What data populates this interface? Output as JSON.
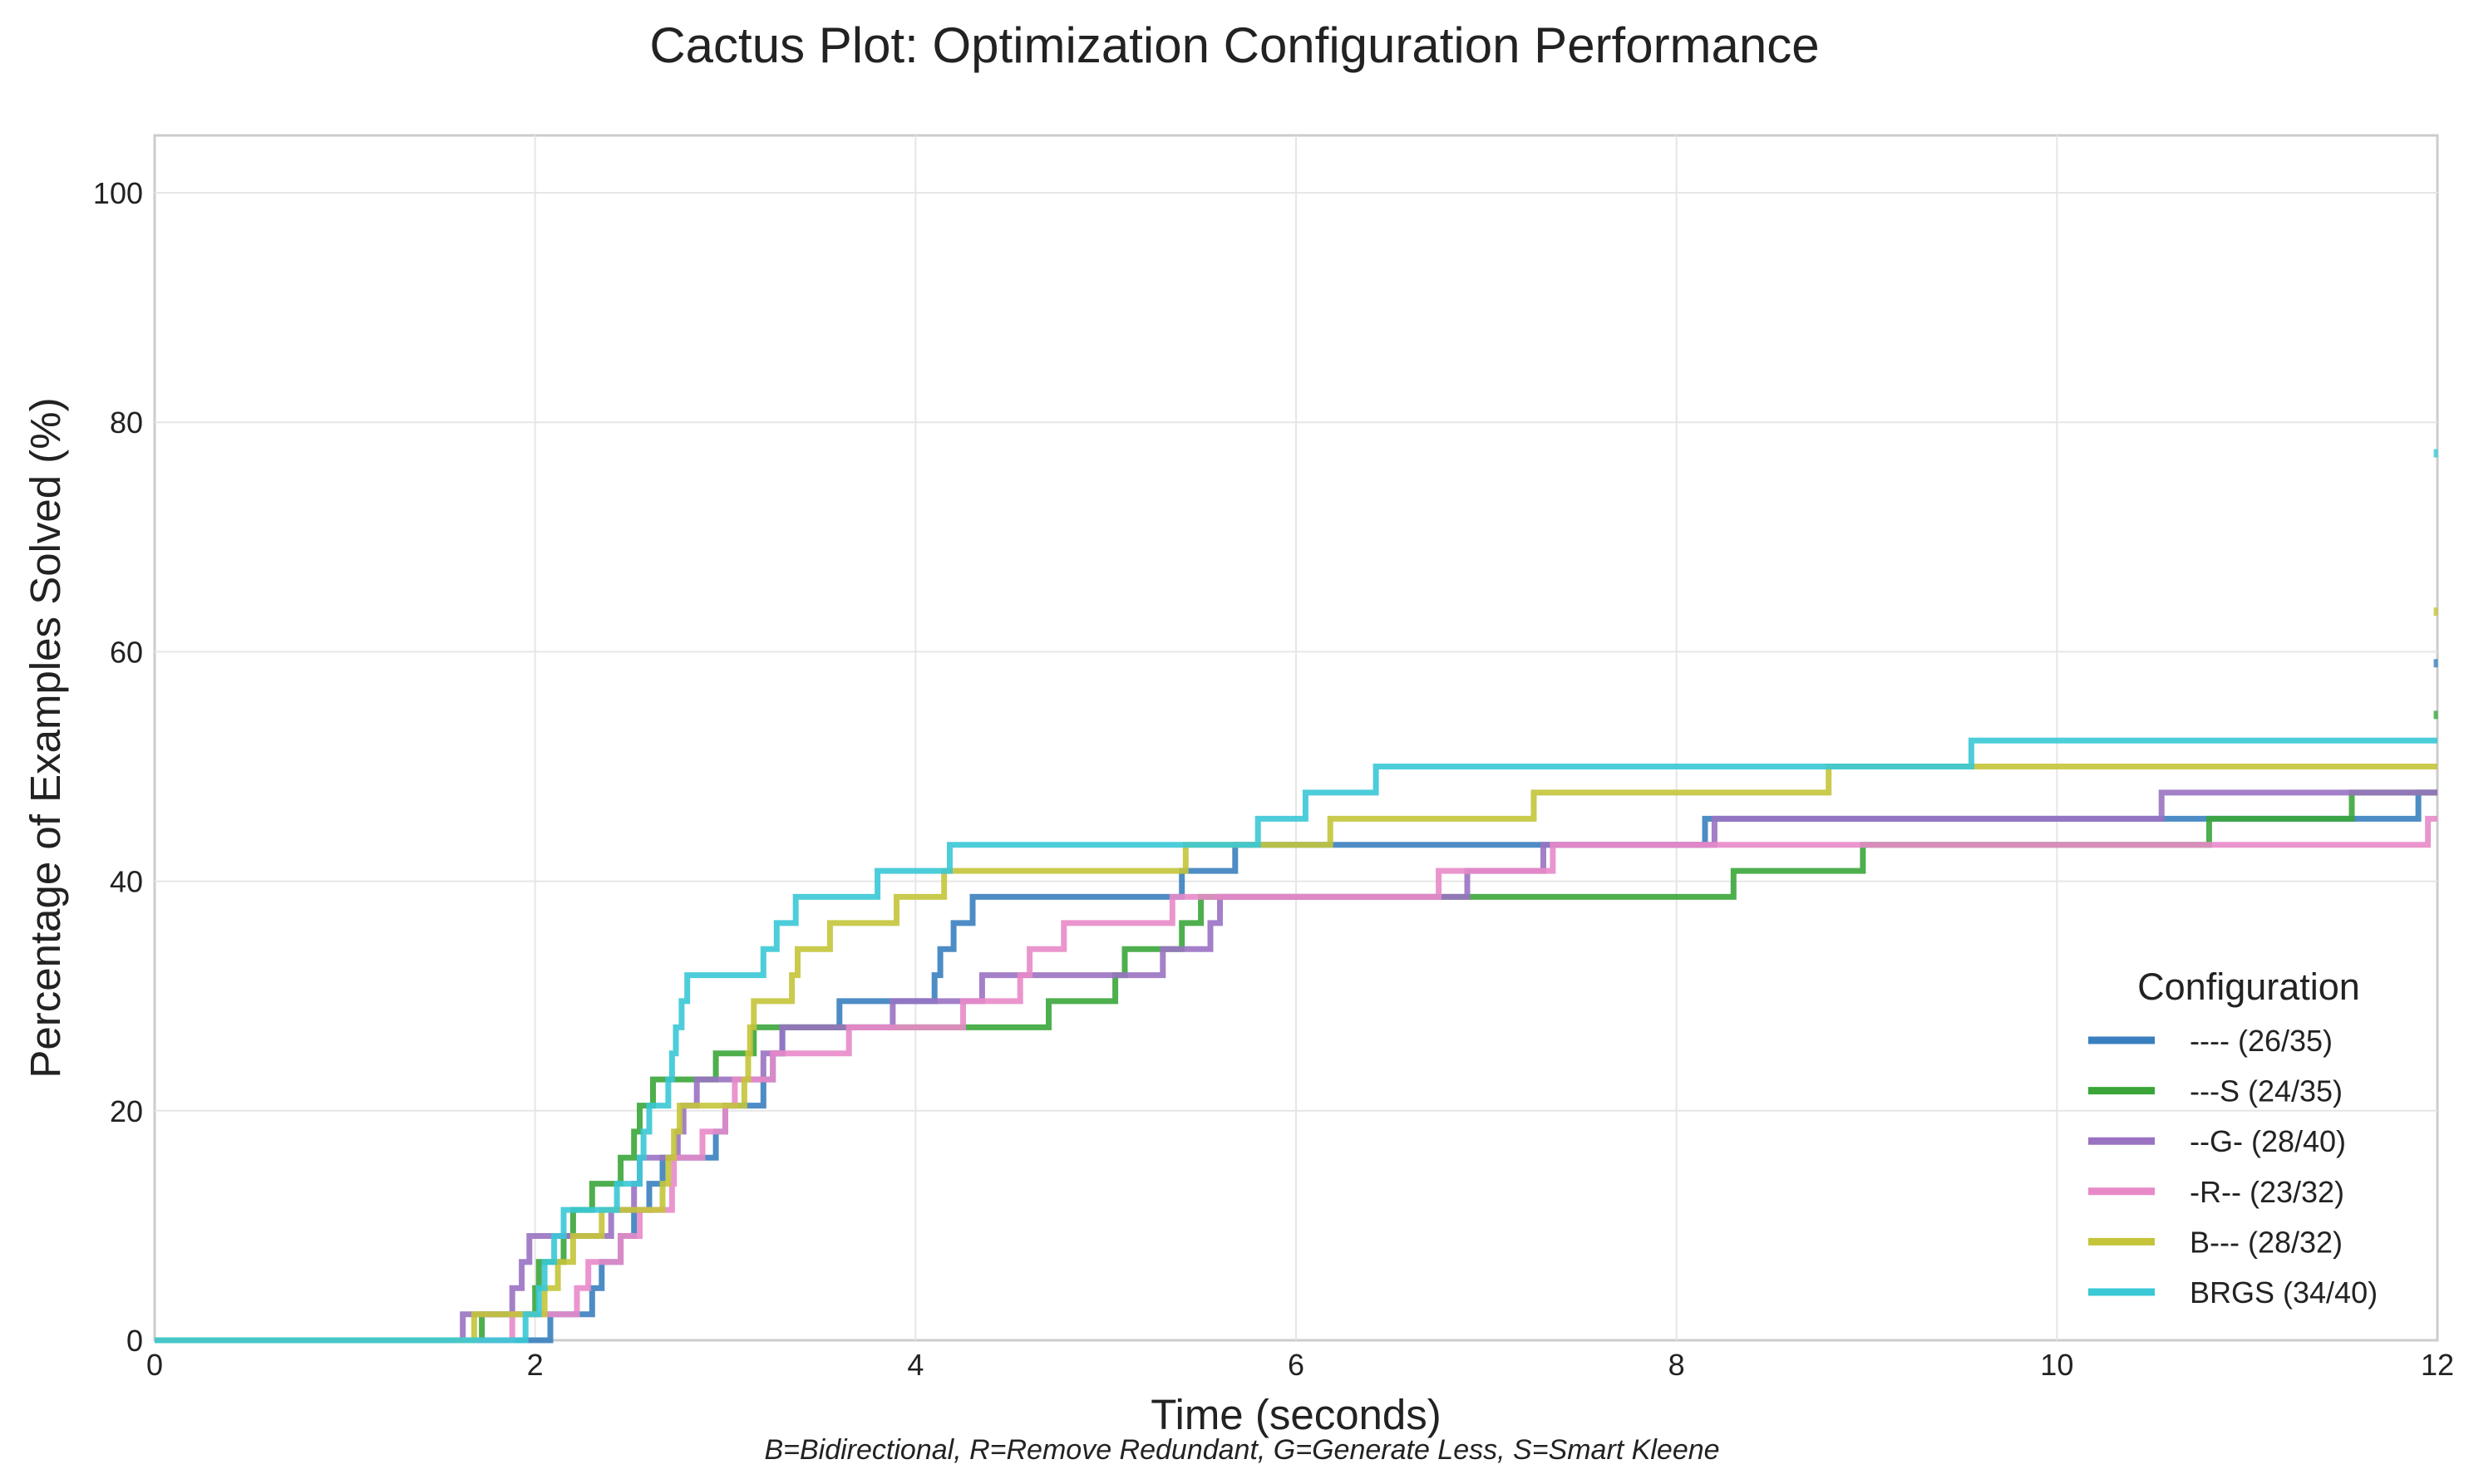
{
  "chart_data": {
    "type": "line",
    "title": "Cactus Plot: Optimization Configuration Performance",
    "xlabel": "Time (seconds)",
    "ylabel": "Percentage of Examples Solved (%)",
    "xlim": [
      0,
      12
    ],
    "ylim": [
      0,
      105
    ],
    "xticks": [
      0,
      2,
      4,
      6,
      8,
      10,
      12
    ],
    "yticks": [
      0,
      20,
      40,
      60,
      80,
      100
    ],
    "grid": true,
    "legend_title": "Configuration",
    "legend_position": "bottom-right",
    "footnote": "B=Bidirectional, R=Remove Redundant, G=Generate Less, S=Smart Kleene",
    "series": [
      {
        "name": "---- (26/35)",
        "color": "#3a7fbf",
        "points": [
          [
            0,
            0
          ],
          [
            2.08,
            0
          ],
          [
            2.08,
            2.27
          ],
          [
            2.3,
            2.27
          ],
          [
            2.3,
            4.55
          ],
          [
            2.35,
            4.55
          ],
          [
            2.35,
            6.82
          ],
          [
            2.45,
            6.82
          ],
          [
            2.45,
            9.09
          ],
          [
            2.52,
            9.09
          ],
          [
            2.52,
            11.36
          ],
          [
            2.6,
            11.36
          ],
          [
            2.6,
            13.64
          ],
          [
            2.67,
            13.64
          ],
          [
            2.67,
            15.91
          ],
          [
            2.95,
            15.91
          ],
          [
            2.95,
            18.18
          ],
          [
            3.0,
            18.18
          ],
          [
            3.0,
            20.45
          ],
          [
            3.2,
            20.45
          ],
          [
            3.2,
            22.73
          ],
          [
            3.25,
            22.73
          ],
          [
            3.25,
            25.0
          ],
          [
            3.3,
            25.0
          ],
          [
            3.3,
            27.27
          ],
          [
            3.6,
            27.27
          ],
          [
            3.6,
            29.55
          ],
          [
            4.1,
            29.55
          ],
          [
            4.1,
            31.82
          ],
          [
            4.13,
            31.82
          ],
          [
            4.13,
            34.09
          ],
          [
            4.2,
            34.09
          ],
          [
            4.2,
            36.36
          ],
          [
            4.3,
            36.36
          ],
          [
            4.3,
            38.64
          ],
          [
            5.4,
            38.64
          ],
          [
            5.4,
            40.91
          ],
          [
            5.68,
            40.91
          ],
          [
            5.68,
            43.18
          ],
          [
            8.15,
            43.18
          ],
          [
            8.15,
            45.45
          ],
          [
            11.9,
            45.45
          ],
          [
            11.9,
            47.73
          ],
          [
            12,
            47.73
          ]
        ],
        "end_marker": 59
      },
      {
        "name": "---S (24/35)",
        "color": "#3aa63a",
        "points": [
          [
            0,
            0
          ],
          [
            1.72,
            0
          ],
          [
            1.72,
            2.27
          ],
          [
            2.0,
            2.27
          ],
          [
            2.0,
            4.55
          ],
          [
            2.02,
            4.55
          ],
          [
            2.02,
            6.82
          ],
          [
            2.15,
            6.82
          ],
          [
            2.15,
            9.09
          ],
          [
            2.2,
            9.09
          ],
          [
            2.2,
            11.36
          ],
          [
            2.3,
            11.36
          ],
          [
            2.3,
            13.64
          ],
          [
            2.45,
            13.64
          ],
          [
            2.45,
            15.91
          ],
          [
            2.52,
            15.91
          ],
          [
            2.52,
            18.18
          ],
          [
            2.55,
            18.18
          ],
          [
            2.55,
            20.45
          ],
          [
            2.62,
            20.45
          ],
          [
            2.62,
            22.73
          ],
          [
            2.95,
            22.73
          ],
          [
            2.95,
            25.0
          ],
          [
            3.15,
            25.0
          ],
          [
            3.15,
            27.27
          ],
          [
            4.7,
            27.27
          ],
          [
            4.7,
            29.55
          ],
          [
            5.05,
            29.55
          ],
          [
            5.05,
            31.82
          ],
          [
            5.1,
            31.82
          ],
          [
            5.1,
            34.09
          ],
          [
            5.4,
            34.09
          ],
          [
            5.4,
            36.36
          ],
          [
            5.5,
            36.36
          ],
          [
            5.5,
            38.64
          ],
          [
            8.3,
            38.64
          ],
          [
            8.3,
            40.91
          ],
          [
            8.98,
            40.91
          ],
          [
            8.98,
            43.18
          ],
          [
            10.8,
            43.18
          ],
          [
            10.8,
            45.45
          ],
          [
            11.55,
            45.45
          ],
          [
            11.55,
            47.73
          ],
          [
            12,
            47.73
          ]
        ],
        "end_marker": 54.5
      },
      {
        "name": "--G- (28/40)",
        "color": "#9a72c2",
        "points": [
          [
            0,
            0
          ],
          [
            1.62,
            0
          ],
          [
            1.62,
            2.27
          ],
          [
            1.88,
            2.27
          ],
          [
            1.88,
            4.55
          ],
          [
            1.93,
            4.55
          ],
          [
            1.93,
            6.82
          ],
          [
            1.97,
            6.82
          ],
          [
            1.97,
            9.09
          ],
          [
            2.4,
            9.09
          ],
          [
            2.4,
            11.36
          ],
          [
            2.52,
            11.36
          ],
          [
            2.52,
            13.64
          ],
          [
            2.55,
            13.64
          ],
          [
            2.55,
            15.91
          ],
          [
            2.75,
            15.91
          ],
          [
            2.75,
            18.18
          ],
          [
            2.78,
            18.18
          ],
          [
            2.78,
            20.45
          ],
          [
            2.85,
            20.45
          ],
          [
            2.85,
            22.73
          ],
          [
            3.2,
            22.73
          ],
          [
            3.2,
            25.0
          ],
          [
            3.3,
            25.0
          ],
          [
            3.3,
            27.27
          ],
          [
            3.88,
            27.27
          ],
          [
            3.88,
            29.55
          ],
          [
            4.35,
            29.55
          ],
          [
            4.35,
            31.82
          ],
          [
            5.3,
            31.82
          ],
          [
            5.3,
            34.09
          ],
          [
            5.55,
            34.09
          ],
          [
            5.55,
            36.36
          ],
          [
            5.6,
            36.36
          ],
          [
            5.6,
            38.64
          ],
          [
            6.9,
            38.64
          ],
          [
            6.9,
            40.91
          ],
          [
            7.3,
            40.91
          ],
          [
            7.3,
            43.18
          ],
          [
            8.2,
            43.18
          ],
          [
            8.2,
            45.45
          ],
          [
            10.55,
            45.45
          ],
          [
            10.55,
            47.73
          ],
          [
            12,
            47.73
          ]
        ],
        "end_marker": null
      },
      {
        "name": "-R-- (23/32)",
        "color": "#e88ac8",
        "points": [
          [
            0,
            0
          ],
          [
            1.88,
            0
          ],
          [
            1.88,
            2.27
          ],
          [
            2.22,
            2.27
          ],
          [
            2.22,
            4.55
          ],
          [
            2.28,
            4.55
          ],
          [
            2.28,
            6.82
          ],
          [
            2.45,
            6.82
          ],
          [
            2.45,
            9.09
          ],
          [
            2.55,
            9.09
          ],
          [
            2.55,
            11.36
          ],
          [
            2.72,
            11.36
          ],
          [
            2.72,
            13.64
          ],
          [
            2.73,
            13.64
          ],
          [
            2.73,
            15.91
          ],
          [
            2.88,
            15.91
          ],
          [
            2.88,
            18.18
          ],
          [
            3.0,
            18.18
          ],
          [
            3.0,
            20.45
          ],
          [
            3.05,
            20.45
          ],
          [
            3.05,
            22.73
          ],
          [
            3.25,
            22.73
          ],
          [
            3.25,
            25.0
          ],
          [
            3.65,
            25.0
          ],
          [
            3.65,
            27.27
          ],
          [
            4.25,
            27.27
          ],
          [
            4.25,
            29.55
          ],
          [
            4.55,
            29.55
          ],
          [
            4.55,
            31.82
          ],
          [
            4.6,
            31.82
          ],
          [
            4.6,
            34.09
          ],
          [
            4.78,
            34.09
          ],
          [
            4.78,
            36.36
          ],
          [
            5.35,
            36.36
          ],
          [
            5.35,
            38.64
          ],
          [
            6.75,
            38.64
          ],
          [
            6.75,
            40.91
          ],
          [
            7.35,
            40.91
          ],
          [
            7.35,
            43.18
          ],
          [
            11.95,
            43.18
          ],
          [
            11.95,
            45.45
          ],
          [
            12,
            45.45
          ]
        ],
        "end_marker": null
      },
      {
        "name": "B--- (28/32)",
        "color": "#c4c43a",
        "points": [
          [
            0,
            0
          ],
          [
            1.68,
            0
          ],
          [
            1.68,
            2.27
          ],
          [
            2.05,
            2.27
          ],
          [
            2.05,
            4.55
          ],
          [
            2.12,
            4.55
          ],
          [
            2.12,
            6.82
          ],
          [
            2.2,
            6.82
          ],
          [
            2.2,
            9.09
          ],
          [
            2.35,
            9.09
          ],
          [
            2.35,
            11.36
          ],
          [
            2.67,
            11.36
          ],
          [
            2.67,
            13.64
          ],
          [
            2.7,
            13.64
          ],
          [
            2.7,
            15.91
          ],
          [
            2.73,
            15.91
          ],
          [
            2.73,
            18.18
          ],
          [
            2.76,
            18.18
          ],
          [
            2.76,
            20.45
          ],
          [
            3.1,
            20.45
          ],
          [
            3.1,
            22.73
          ],
          [
            3.12,
            22.73
          ],
          [
            3.12,
            25.0
          ],
          [
            3.13,
            25.0
          ],
          [
            3.13,
            27.27
          ],
          [
            3.15,
            27.27
          ],
          [
            3.15,
            29.55
          ],
          [
            3.35,
            29.55
          ],
          [
            3.35,
            31.82
          ],
          [
            3.38,
            31.82
          ],
          [
            3.38,
            34.09
          ],
          [
            3.55,
            34.09
          ],
          [
            3.55,
            36.36
          ],
          [
            3.9,
            36.36
          ],
          [
            3.9,
            38.64
          ],
          [
            4.15,
            38.64
          ],
          [
            4.15,
            40.91
          ],
          [
            5.42,
            40.91
          ],
          [
            5.42,
            43.18
          ],
          [
            6.18,
            43.18
          ],
          [
            6.18,
            45.45
          ],
          [
            7.25,
            45.45
          ],
          [
            7.25,
            47.73
          ],
          [
            8.8,
            47.73
          ],
          [
            8.8,
            50.0
          ],
          [
            12,
            50.0
          ]
        ],
        "end_marker": 63.5
      },
      {
        "name": "BRGS (34/40)",
        "color": "#3ac8d6",
        "points": [
          [
            0,
            0
          ],
          [
            1.95,
            0
          ],
          [
            1.95,
            2.27
          ],
          [
            2.02,
            2.27
          ],
          [
            2.02,
            4.55
          ],
          [
            2.05,
            4.55
          ],
          [
            2.05,
            6.82
          ],
          [
            2.1,
            6.82
          ],
          [
            2.1,
            9.09
          ],
          [
            2.15,
            9.09
          ],
          [
            2.15,
            11.36
          ],
          [
            2.43,
            11.36
          ],
          [
            2.43,
            13.64
          ],
          [
            2.55,
            13.64
          ],
          [
            2.55,
            15.91
          ],
          [
            2.57,
            15.91
          ],
          [
            2.57,
            18.18
          ],
          [
            2.6,
            18.18
          ],
          [
            2.6,
            20.45
          ],
          [
            2.7,
            20.45
          ],
          [
            2.7,
            22.73
          ],
          [
            2.72,
            22.73
          ],
          [
            2.72,
            25.0
          ],
          [
            2.74,
            25.0
          ],
          [
            2.74,
            27.27
          ],
          [
            2.77,
            27.27
          ],
          [
            2.77,
            29.55
          ],
          [
            2.8,
            29.55
          ],
          [
            2.8,
            31.82
          ],
          [
            3.2,
            31.82
          ],
          [
            3.2,
            34.09
          ],
          [
            3.27,
            34.09
          ],
          [
            3.27,
            36.36
          ],
          [
            3.37,
            36.36
          ],
          [
            3.37,
            38.64
          ],
          [
            3.8,
            38.64
          ],
          [
            3.8,
            40.91
          ],
          [
            4.18,
            40.91
          ],
          [
            4.18,
            43.18
          ],
          [
            5.8,
            43.18
          ],
          [
            5.8,
            45.45
          ],
          [
            6.05,
            45.45
          ],
          [
            6.05,
            47.73
          ],
          [
            6.42,
            47.73
          ],
          [
            6.42,
            50.0
          ],
          [
            9.55,
            50.0
          ],
          [
            9.55,
            52.27
          ],
          [
            12,
            52.27
          ]
        ],
        "end_marker": 77.3
      }
    ]
  }
}
